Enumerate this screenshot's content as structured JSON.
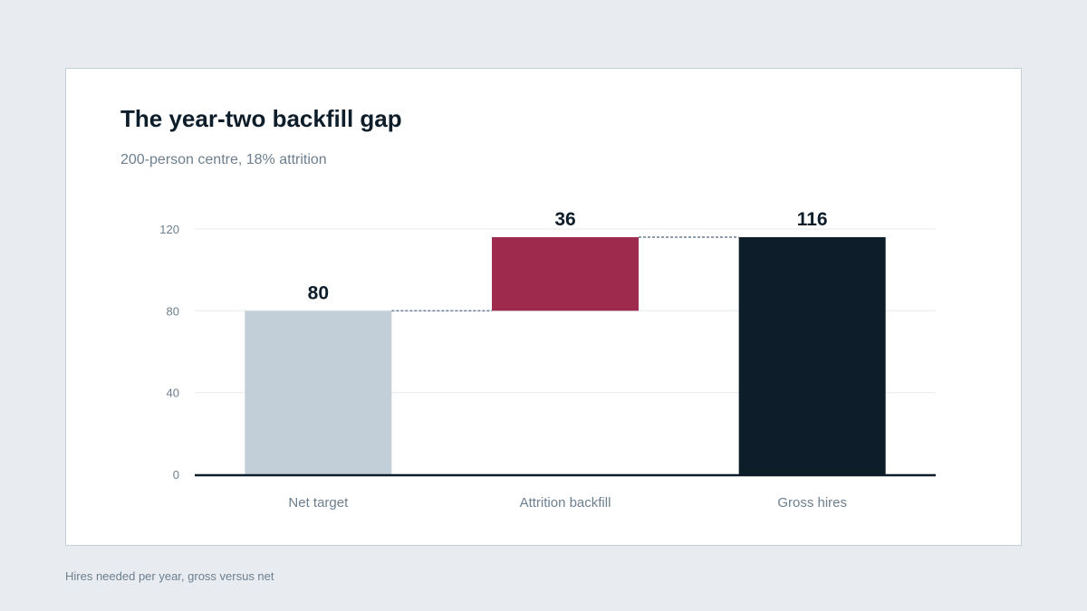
{
  "caption": "Hires needed per year, gross versus net",
  "colors": {
    "background": "#e8ebf0",
    "card": "#ffffff",
    "text_dark": "#0e1d2a",
    "text_muted": "#6d7f8e",
    "gridline": "#edf0f3",
    "connector": "#6a7f94"
  },
  "chart_data": {
    "type": "bar",
    "subtype": "waterfall",
    "title": "The year-two backfill gap",
    "subtitle": "200-person centre, 18% attrition",
    "categories": [
      "Net target",
      "Attrition backfill",
      "Gross hires"
    ],
    "values": [
      80,
      36,
      116
    ],
    "bar_bases": [
      0,
      80,
      0
    ],
    "data_labels": [
      "80",
      "36",
      "116"
    ],
    "bar_colors": [
      "#c3cfd8",
      "#9e2a4e",
      "#0e1d2a"
    ],
    "ylim": [
      0,
      120
    ],
    "yticks": [
      0,
      40,
      80,
      120
    ],
    "ytick_labels": [
      "0",
      "40",
      "80",
      "120"
    ],
    "xlabel": "",
    "ylabel": "",
    "grid": true,
    "legend": "none",
    "connectors": true
  }
}
